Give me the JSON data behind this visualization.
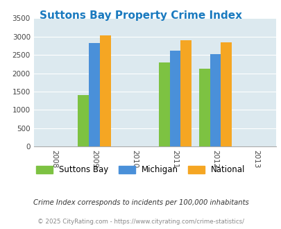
{
  "title": "Suttons Bay Property Crime Index",
  "title_color": "#1a7abf",
  "years": [
    2009,
    2011,
    2012
  ],
  "suttons_bay": [
    1400,
    2290,
    2120
  ],
  "michigan": [
    2830,
    2620,
    2530
  ],
  "national": [
    3040,
    2900,
    2850
  ],
  "color_suttons": "#7dc242",
  "color_michigan": "#4a90d9",
  "color_national": "#f5a623",
  "xlim": [
    2007.5,
    2013.5
  ],
  "ylim": [
    0,
    3500
  ],
  "yticks": [
    0,
    500,
    1000,
    1500,
    2000,
    2500,
    3000,
    3500
  ],
  "xticks": [
    2008,
    2009,
    2010,
    2011,
    2012,
    2013
  ],
  "bg_color": "#dce9ef",
  "note": "Crime Index corresponds to incidents per 100,000 inhabitants",
  "footer": "© 2025 CityRating.com - https://www.cityrating.com/crime-statistics/",
  "bar_width": 0.27,
  "legend_labels": [
    "Suttons Bay",
    "Michigan",
    "National"
  ]
}
